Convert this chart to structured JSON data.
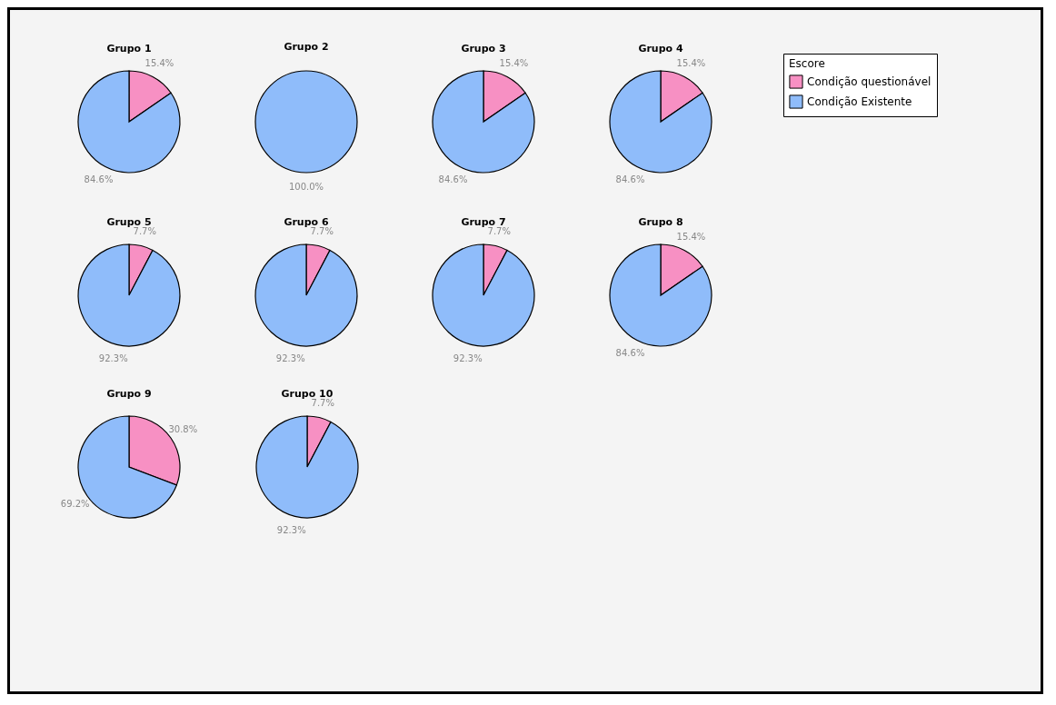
{
  "chart_data": [
    {
      "type": "pie",
      "title": "Grupo 1",
      "categories": [
        "Condição questionável",
        "Condição Existente"
      ],
      "values": [
        15.4,
        84.6
      ],
      "value_labels": [
        "15.4%",
        "84.6%"
      ],
      "colors": [
        "#f790c3",
        "#8fbcfa"
      ],
      "legend": "right",
      "legend_title": "Escore"
    },
    {
      "type": "pie",
      "title": "Grupo 2",
      "values": [
        0,
        100
      ],
      "value_labels": [
        null,
        "100.0%"
      ],
      "colors": [
        "#f790c3",
        "#8fbcfa"
      ]
    },
    {
      "type": "pie",
      "title": "Grupo 3",
      "values": [
        15.4,
        84.6
      ],
      "value_labels": [
        "15.4%",
        "84.6%"
      ],
      "colors": [
        "#f790c3",
        "#8fbcfa"
      ]
    },
    {
      "type": "pie",
      "title": "Grupo 4",
      "values": [
        15.4,
        84.6
      ],
      "value_labels": [
        "15.4%",
        "84.6%"
      ],
      "colors": [
        "#f790c3",
        "#8fbcfa"
      ]
    },
    {
      "type": "pie",
      "title": "Grupo 5",
      "values": [
        7.7,
        92.3
      ],
      "value_labels": [
        "7.7%",
        "92.3%"
      ],
      "colors": [
        "#f790c3",
        "#8fbcfa"
      ]
    },
    {
      "type": "pie",
      "title": "Grupo 6",
      "values": [
        7.7,
        92.3
      ],
      "value_labels": [
        "7.7%",
        "92.3%"
      ],
      "colors": [
        "#f790c3",
        "#8fbcfa"
      ]
    },
    {
      "type": "pie",
      "title": "Grupo 7",
      "values": [
        7.7,
        92.3
      ],
      "value_labels": [
        "7.7%",
        "92.3%"
      ],
      "colors": [
        "#f790c3",
        "#8fbcfa"
      ]
    },
    {
      "type": "pie",
      "title": "Grupo 8",
      "values": [
        15.4,
        84.6
      ],
      "value_labels": [
        "15.4%",
        "84.6%"
      ],
      "colors": [
        "#f790c3",
        "#8fbcfa"
      ]
    },
    {
      "type": "pie",
      "title": "Grupo 9",
      "values": [
        30.8,
        69.2
      ],
      "value_labels": [
        "30.8%",
        "69.2%"
      ],
      "colors": [
        "#f790c3",
        "#8fbcfa"
      ]
    },
    {
      "type": "pie",
      "title": "Grupo 10",
      "values": [
        7.7,
        92.3
      ],
      "value_labels": [
        "7.7%",
        "92.3%"
      ],
      "colors": [
        "#f790c3",
        "#8fbcfa"
      ]
    }
  ]
}
